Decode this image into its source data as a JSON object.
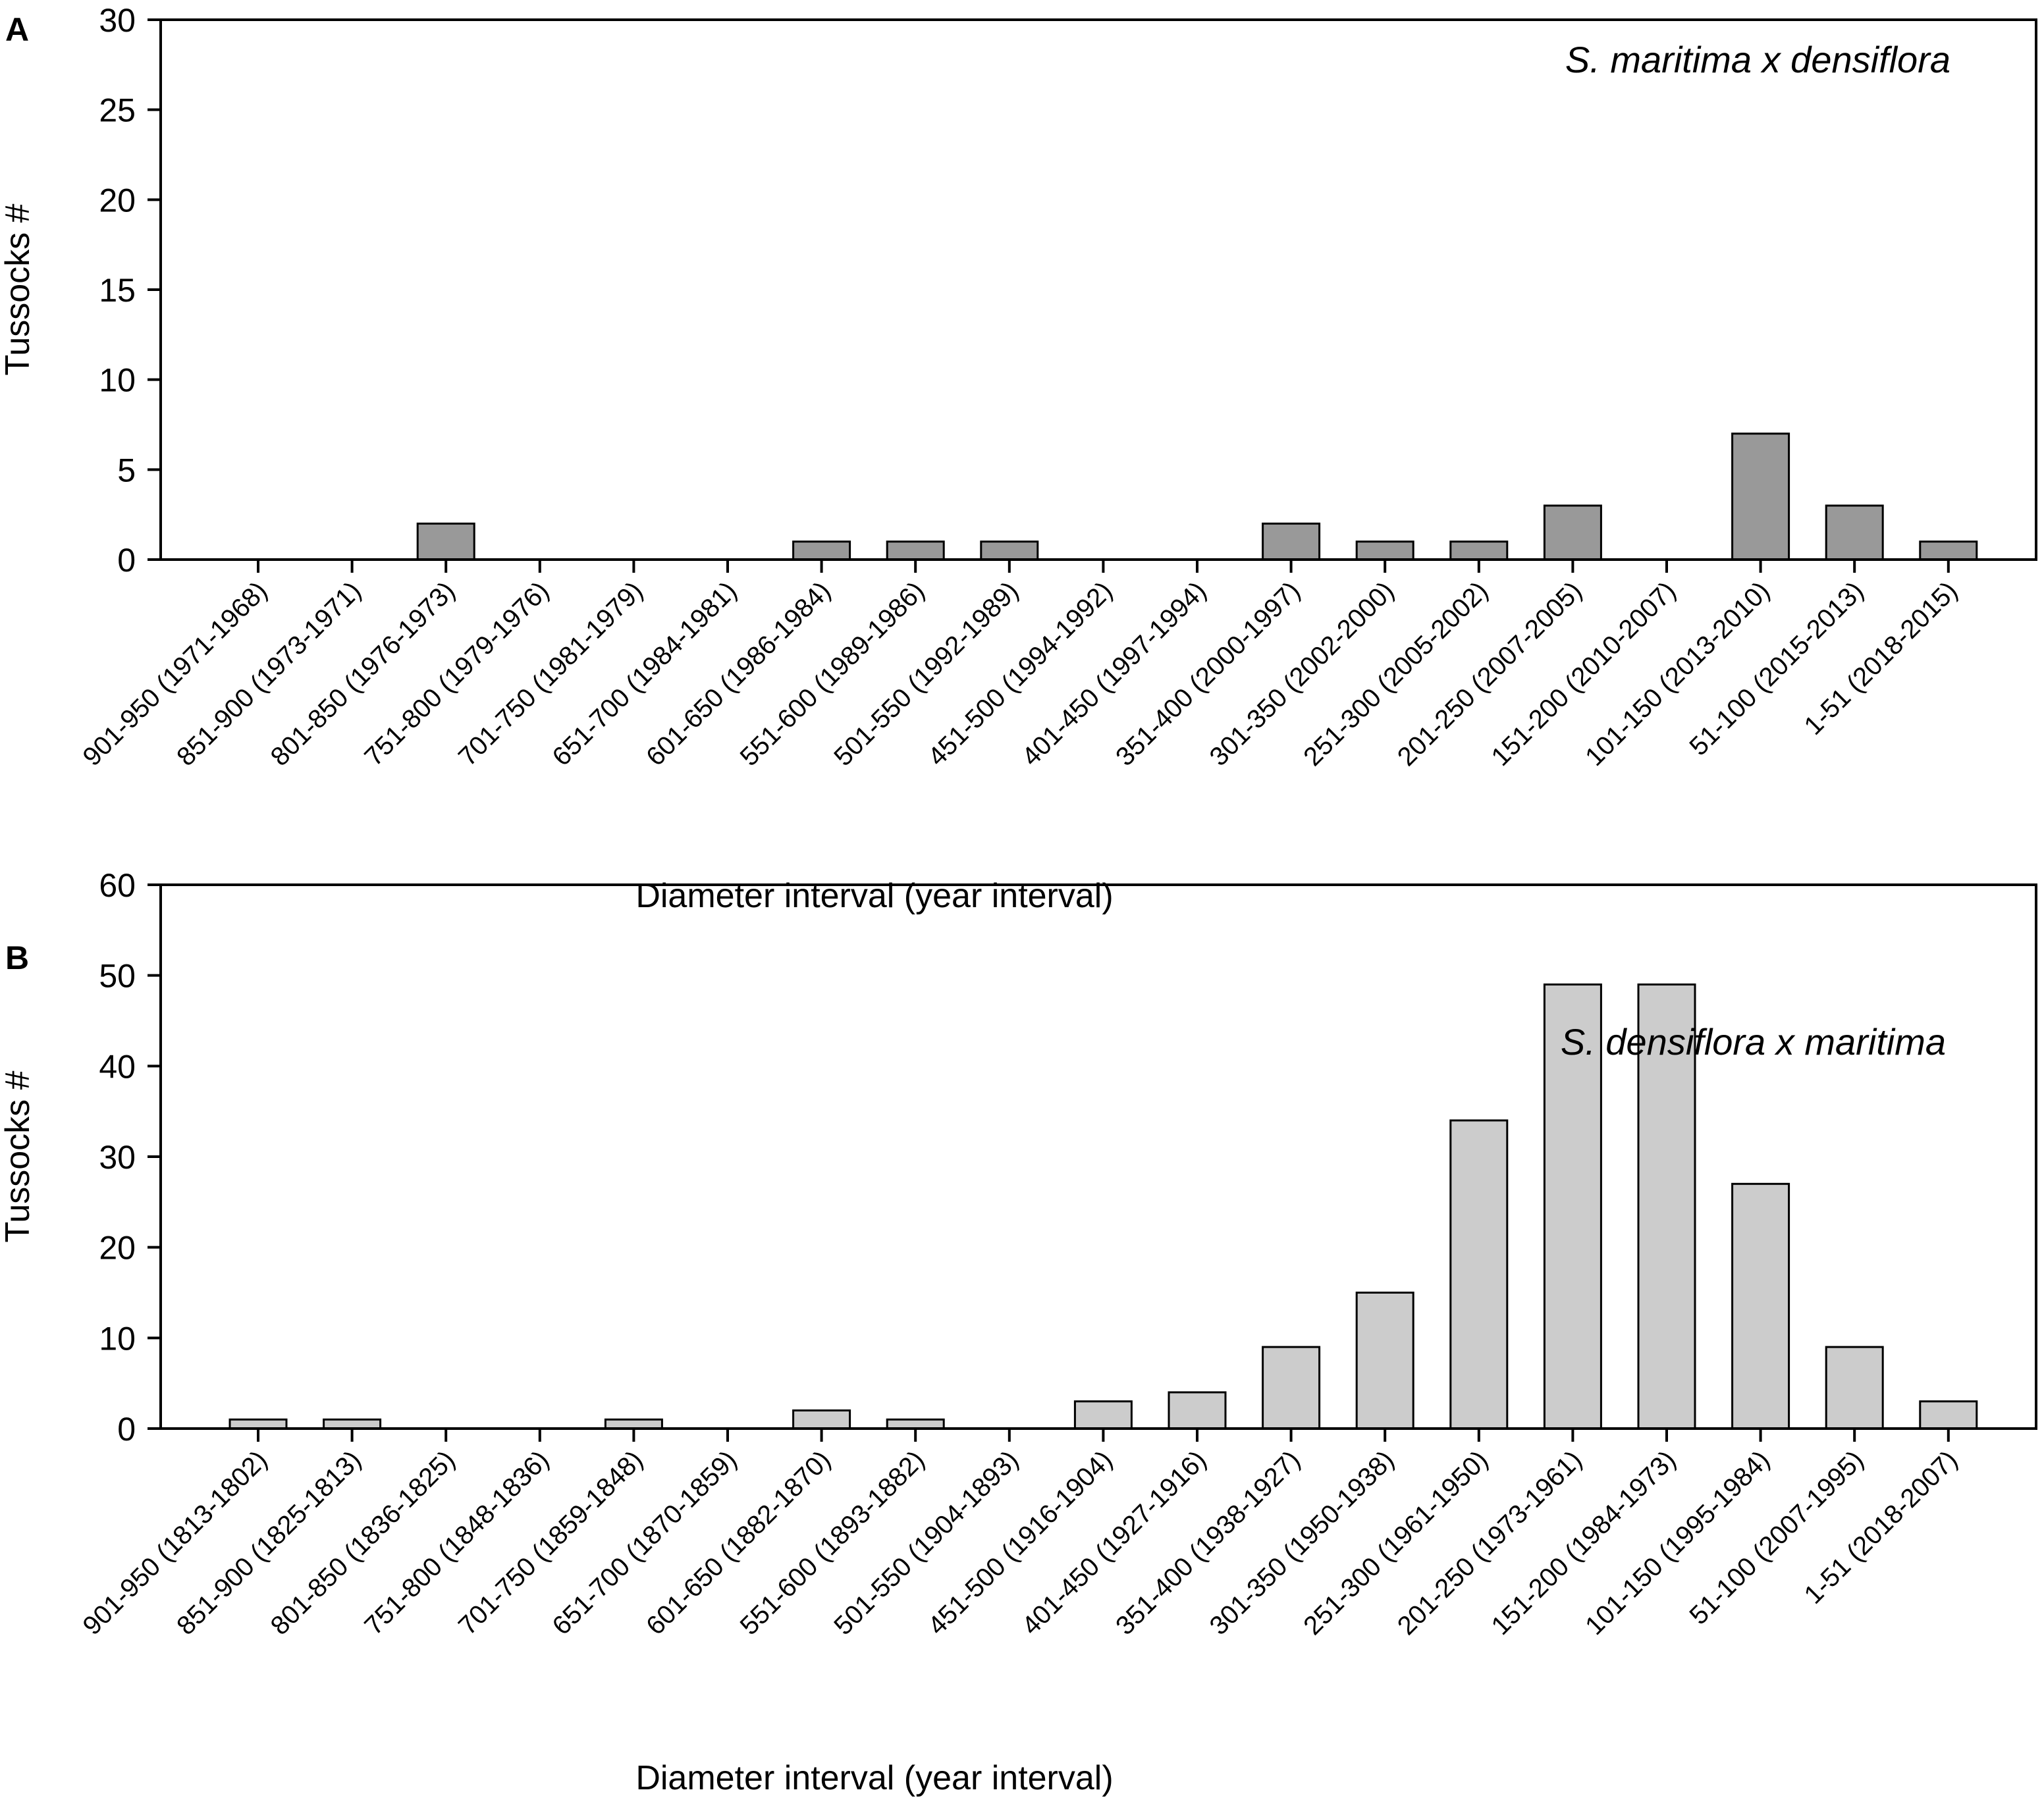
{
  "chart_data": [
    {
      "type": "bar",
      "panel_label": "A",
      "annotation": "S. maritima x densiflora",
      "title": "",
      "xlabel": "Diameter interval (year interval)",
      "ylabel": "Tussocks #",
      "ylim": [
        0,
        30
      ],
      "yticks": [
        0,
        5,
        10,
        15,
        20,
        25,
        30
      ],
      "grid": false,
      "legend": "none",
      "bar_color": "#999999",
      "categories": [
        "901-950 (1971-1968)",
        "851-900 (1973-1971)",
        "801-850 (1976-1973)",
        "751-800 (1979-1976)",
        "701-750 (1981-1979)",
        "651-700 (1984-1981)",
        "601-650 (1986-1984)",
        "551-600 (1989-1986)",
        "501-550 (1992-1989)",
        "451-500 (1994-1992)",
        "401-450 (1997-1994)",
        "351-400 (2000-1997)",
        "301-350 (2002-2000)",
        "251-300 (2005-2002)",
        "201-250 (2007-2005)",
        "151-200 (2010-2007)",
        "101-150 (2013-2010)",
        "51-100 (2015-2013)",
        "1-51 (2018-2015)"
      ],
      "values": [
        0,
        0,
        2,
        0,
        0,
        0,
        1,
        1,
        1,
        0,
        0,
        2,
        1,
        1,
        3,
        0,
        7,
        3,
        1
      ]
    },
    {
      "type": "bar",
      "panel_label": "B",
      "annotation": "S. densiflora x maritima",
      "title": "",
      "xlabel": "Diameter interval (year interval)",
      "ylabel": "Tussocks #",
      "ylim": [
        0,
        60
      ],
      "yticks": [
        0,
        10,
        20,
        30,
        40,
        50,
        60
      ],
      "grid": false,
      "legend": "none",
      "bar_color": "#cccccc",
      "categories": [
        "901-950 (1813-1802)",
        "851-900 (1825-1813)",
        "801-850 (1836-1825)",
        "751-800 (1848-1836)",
        "701-750 (1859-1848)",
        "651-700 (1870-1859)",
        "601-650 (1882-1870)",
        "551-600 (1893-1882)",
        "501-550 (1904-1893)",
        "451-500 (1916-1904)",
        "401-450 (1927-1916)",
        "351-400 (1938-1927)",
        "301-350 (1950-1938)",
        "251-300 (1961-1950)",
        "201-250 (1973-1961)",
        "151-200 (1984-1973)",
        "101-150 (1995-1984)",
        "51-100 (2007-1995)",
        "1-51 (2018-2007)"
      ],
      "values": [
        1,
        1,
        0,
        0,
        1,
        0,
        2,
        1,
        0,
        3,
        4,
        9,
        15,
        34,
        49,
        49,
        27,
        9,
        3
      ]
    }
  ]
}
